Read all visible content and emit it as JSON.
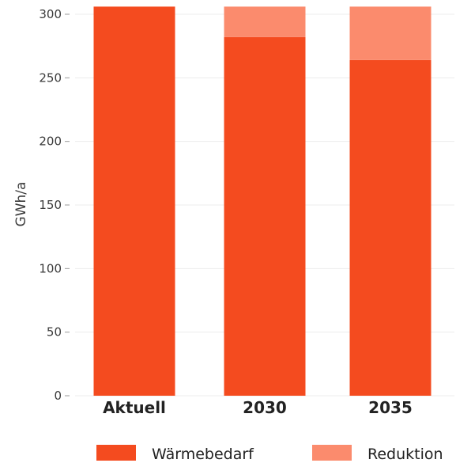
{
  "chart_data": {
    "type": "bar",
    "stacked": true,
    "categories": [
      "Aktuell",
      "2030",
      "2035"
    ],
    "series": [
      {
        "name": "Wärmebedarf",
        "values": [
          306,
          282,
          264
        ],
        "color": "#f44b1f"
      },
      {
        "name": "Reduktion",
        "values": [
          0,
          24,
          42
        ],
        "color": "#fb8b6d"
      }
    ],
    "title": "",
    "xlabel": "",
    "ylabel": "GWh/a",
    "ylim": [
      0,
      310
    ],
    "yticks": [
      0,
      50,
      100,
      150,
      200,
      250,
      300
    ],
    "grid": true,
    "legend": "bottom"
  }
}
